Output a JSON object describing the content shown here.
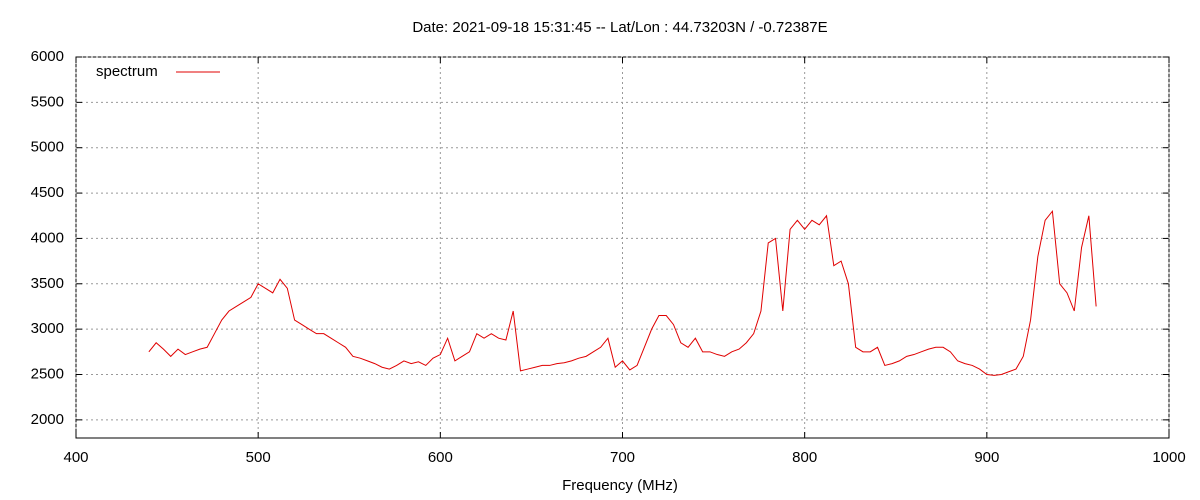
{
  "chart_data": {
    "type": "line",
    "title": "Date: 2021-09-18 15:31:45  --  Lat/Lon : 44.73203N / -0.72387E",
    "xlabel": "Frequency (MHz)",
    "x": [
      440,
      444,
      448,
      452,
      456,
      460,
      464,
      468,
      472,
      476,
      480,
      484,
      488,
      492,
      496,
      500,
      504,
      508,
      512,
      516,
      520,
      524,
      528,
      532,
      536,
      540,
      544,
      548,
      552,
      556,
      560,
      564,
      568,
      572,
      576,
      580,
      584,
      588,
      592,
      596,
      600,
      604,
      608,
      612,
      616,
      620,
      624,
      628,
      632,
      636,
      640,
      644,
      648,
      652,
      656,
      660,
      664,
      668,
      672,
      676,
      680,
      684,
      688,
      692,
      696,
      700,
      704,
      708,
      712,
      716,
      720,
      724,
      728,
      732,
      736,
      740,
      744,
      748,
      752,
      756,
      760,
      764,
      768,
      772,
      776,
      780,
      784,
      788,
      792,
      796,
      800,
      804,
      808,
      812,
      816,
      820,
      824,
      828,
      832,
      836,
      840,
      844,
      848,
      852,
      856,
      860,
      864,
      868,
      872,
      876,
      880,
      884,
      888,
      892,
      896,
      900,
      904,
      908,
      912,
      916,
      920,
      924,
      928,
      932,
      936,
      940,
      944,
      948,
      952,
      956,
      960
    ],
    "series": [
      {
        "name": "spectrum",
        "color": "#e00000",
        "values": [
          2750,
          2850,
          2780,
          2700,
          2780,
          2720,
          2750,
          2780,
          2800,
          2950,
          3100,
          3200,
          3250,
          3300,
          3350,
          3500,
          3450,
          3400,
          3550,
          3450,
          3100,
          3050,
          3000,
          2950,
          2950,
          2900,
          2850,
          2800,
          2700,
          2680,
          2650,
          2620,
          2580,
          2560,
          2600,
          2650,
          2620,
          2640,
          2600,
          2680,
          2720,
          2900,
          2650,
          2700,
          2750,
          2950,
          2900,
          2950,
          2900,
          2880,
          3200,
          2540,
          2560,
          2580,
          2600,
          2600,
          2620,
          2630,
          2650,
          2680,
          2700,
          2750,
          2800,
          2900,
          2580,
          2650,
          2550,
          2600,
          2800,
          3000,
          3150,
          3150,
          3050,
          2850,
          2800,
          2900,
          2750,
          2750,
          2720,
          2700,
          2750,
          2780,
          2850,
          2950,
          3200,
          3950,
          4000,
          3200,
          4100,
          4200,
          4100,
          4200,
          4150,
          4250,
          3700,
          3750,
          3500,
          2800,
          2750,
          2750,
          2800,
          2600,
          2620,
          2650,
          2700,
          2720,
          2750,
          2780,
          2800,
          2800,
          2750,
          2650,
          2620,
          2600,
          2560,
          2500,
          2490,
          2500,
          2530,
          2560,
          2700,
          3100,
          3800,
          4200,
          4300,
          3500,
          3400,
          3200,
          3900,
          4250,
          3250
        ]
      }
    ],
    "xlim": [
      400,
      1000
    ],
    "xticks": [
      400,
      500,
      600,
      700,
      800,
      900,
      1000
    ],
    "ylim": [
      1800,
      6000
    ],
    "yticks": [
      2000,
      2500,
      3000,
      3500,
      4000,
      4500,
      5000,
      5500,
      6000
    ],
    "grid": true,
    "legend": "top-left"
  }
}
